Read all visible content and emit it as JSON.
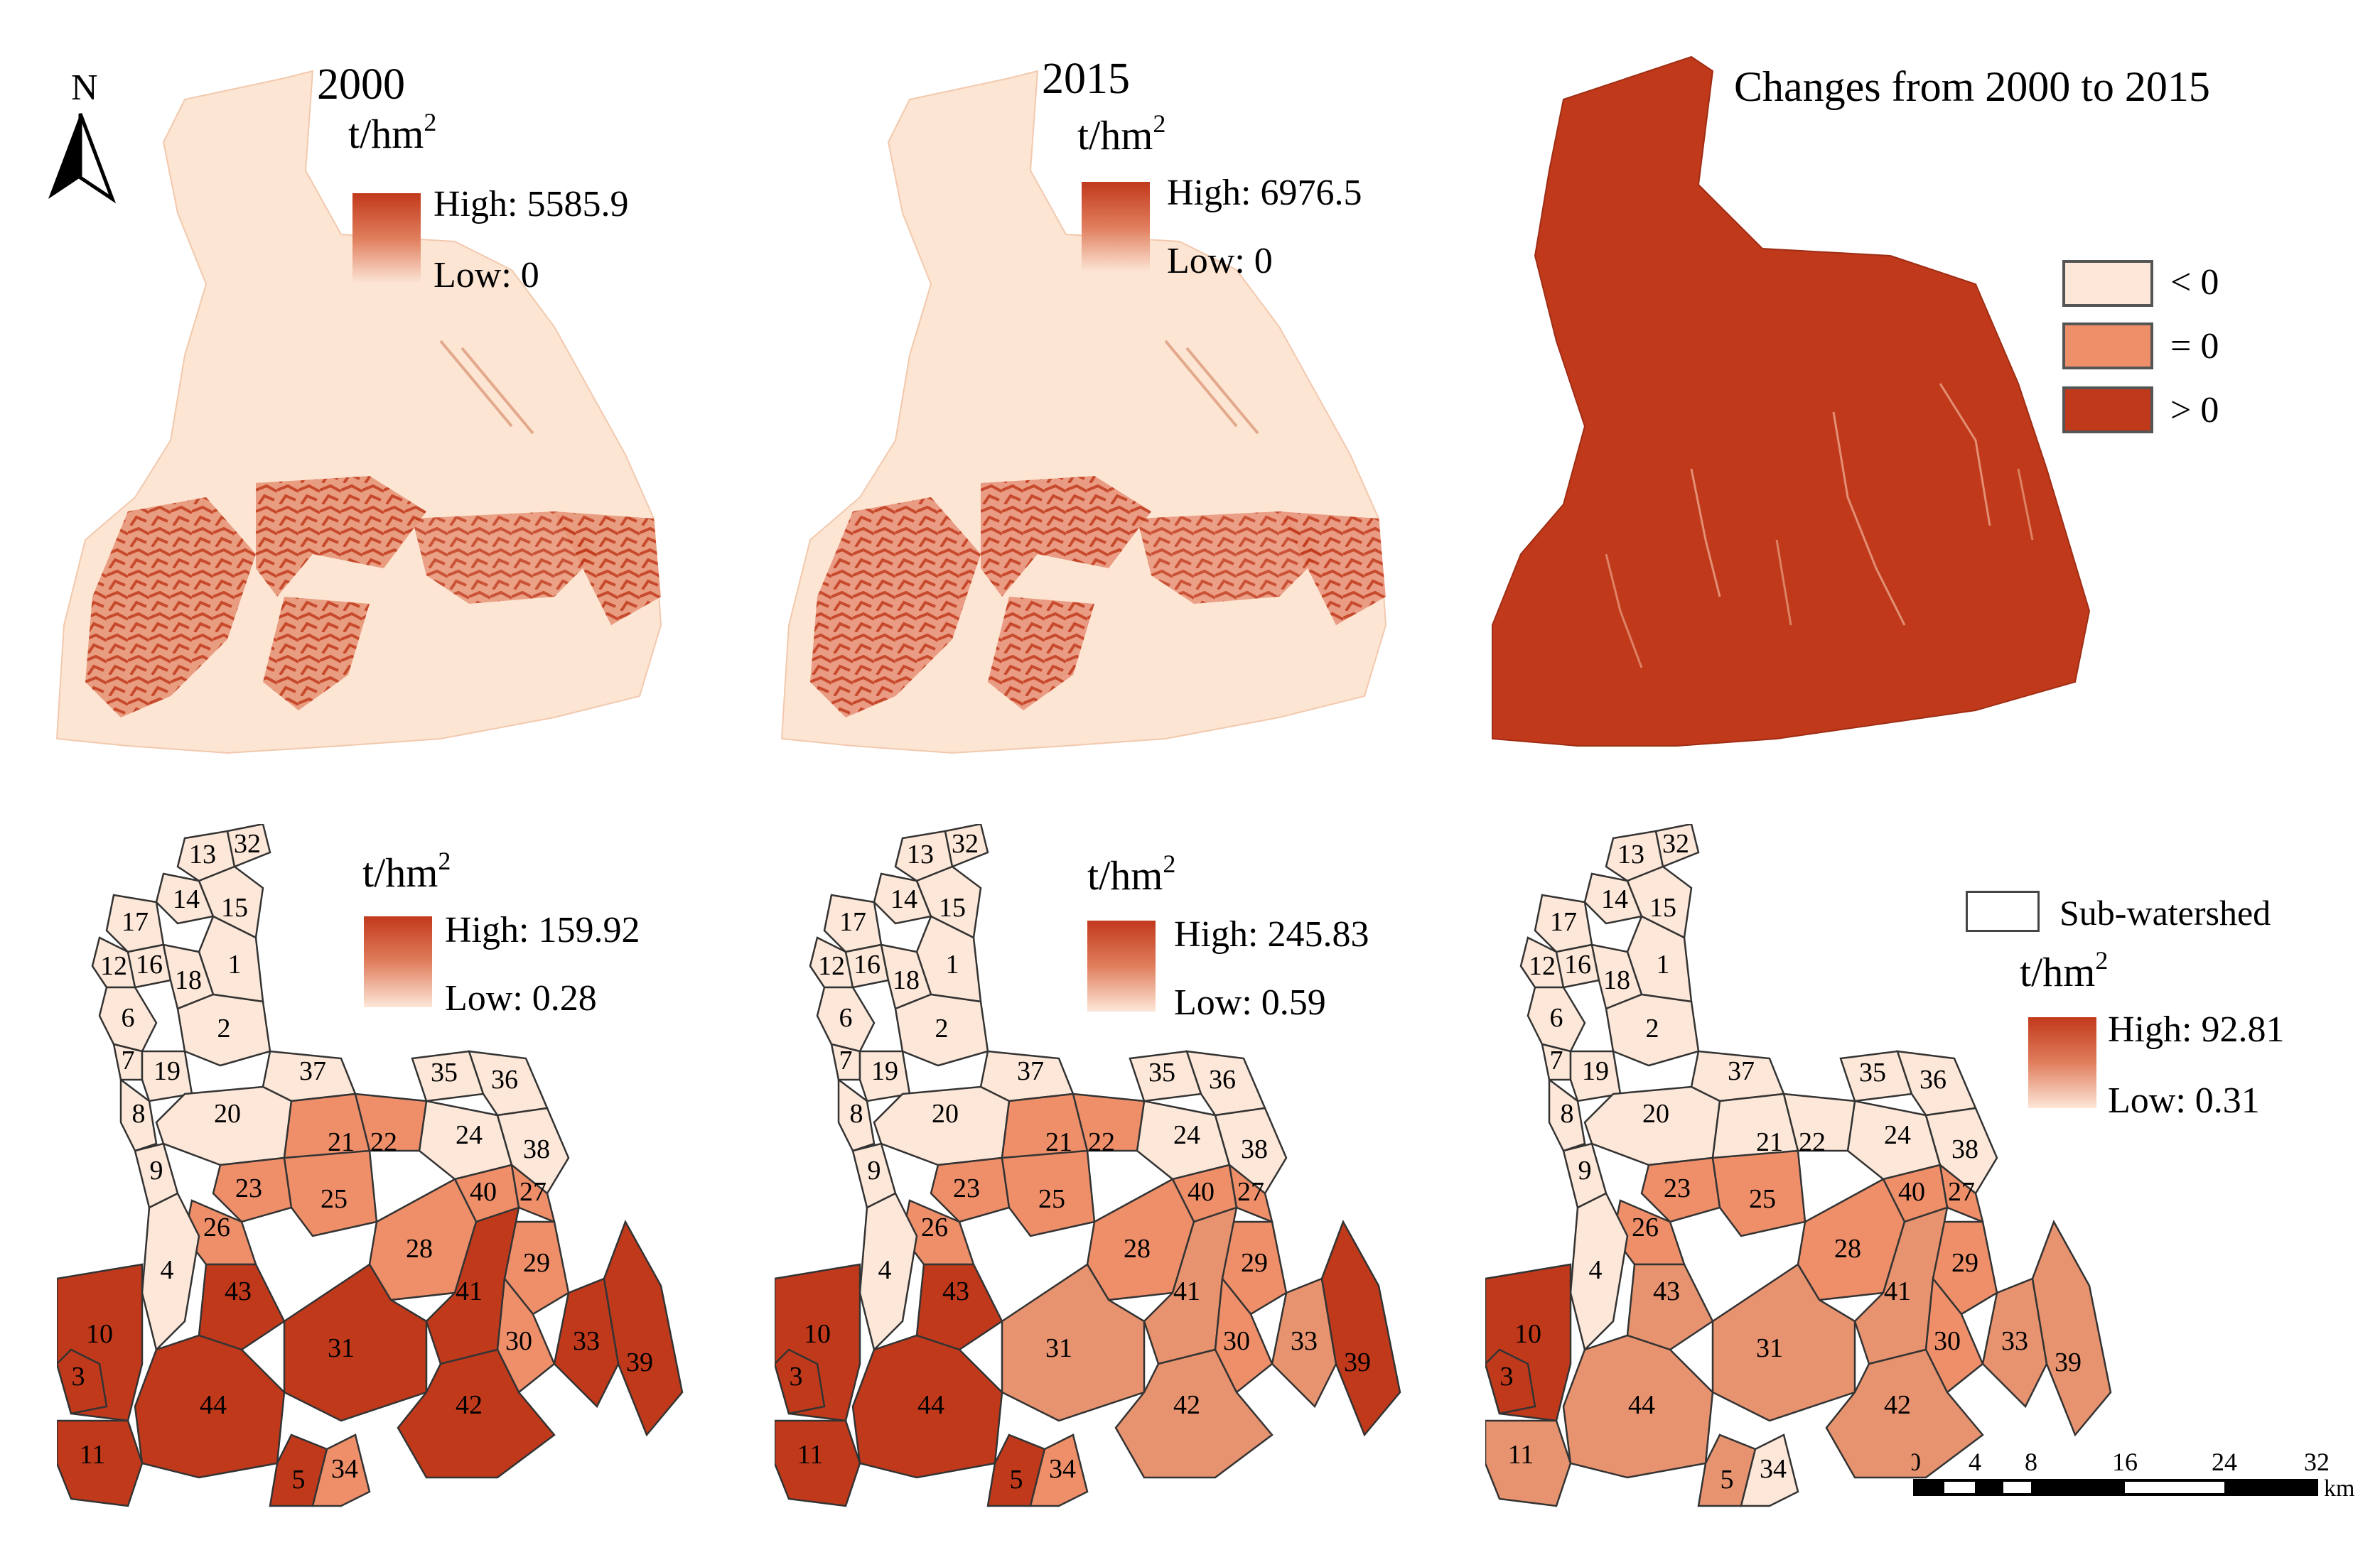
{
  "north_arrow": {
    "label": "N"
  },
  "panels_top": [
    {
      "title": "2000",
      "unit": "t/hm",
      "unit_sup": "2",
      "high": "High: 5585.9",
      "low": "Low: 0"
    },
    {
      "title": "2015",
      "unit": "t/hm",
      "unit_sup": "2",
      "high": "High: 6976.5",
      "low": "Low: 0"
    },
    {
      "title": "Changes from 2000 to 2015",
      "categories": [
        {
          "label": "< 0",
          "color": "#fde7d8"
        },
        {
          "label": "= 0",
          "color": "#ee8f6a"
        },
        {
          "label": "> 0",
          "color": "#c1391b"
        }
      ]
    }
  ],
  "panels_bottom": [
    {
      "unit": "t/hm",
      "unit_sup": "2",
      "high": "High: 159.92",
      "low": "Low: 0.28"
    },
    {
      "unit": "t/hm",
      "unit_sup": "2",
      "high": "High: 245.83",
      "low": "Low: 0.59"
    },
    {
      "unit": "t/hm",
      "unit_sup": "2",
      "high": "High: 92.81",
      "low": "Low: 0.31",
      "subwatershed_label": "Sub-watershed"
    }
  ],
  "subwatershed_ids": [
    "1",
    "2",
    "3",
    "4",
    "5",
    "6",
    "7",
    "8",
    "9",
    "10",
    "11",
    "12",
    "13",
    "14",
    "15",
    "16",
    "17",
    "18",
    "19",
    "20",
    "21",
    "22",
    "23",
    "24",
    "25",
    "26",
    "27",
    "28",
    "29",
    "30",
    "31",
    "32",
    "33",
    "34",
    "35",
    "36",
    "37",
    "38",
    "39",
    "40",
    "41",
    "42",
    "43",
    "44"
  ],
  "scale_bar": {
    "ticks": [
      "0",
      "4",
      "8",
      "16",
      "24",
      "32"
    ],
    "unit": "km"
  },
  "colors": {
    "low": "#fde7d8",
    "mid": "#ee8f6a",
    "high": "#c1391b",
    "outline": "#333333"
  }
}
